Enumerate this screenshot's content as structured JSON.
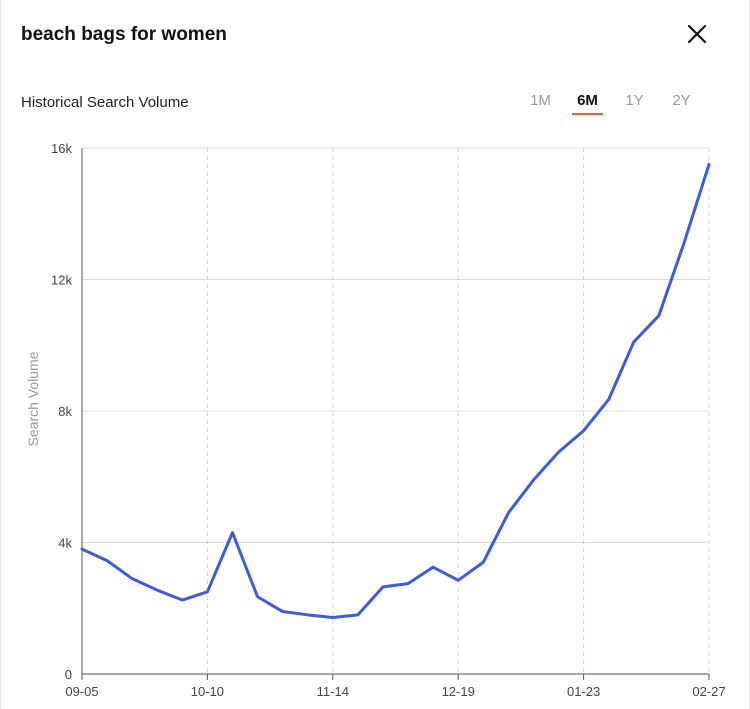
{
  "panel": {
    "title": "beach bags for women",
    "subtitle": "Historical Search Volume",
    "ranges": [
      {
        "label": "1M",
        "active": false
      },
      {
        "label": "6M",
        "active": true
      },
      {
        "label": "1Y",
        "active": false
      },
      {
        "label": "2Y",
        "active": false
      }
    ],
    "accent_color": "#e8632a",
    "close_icon": "close-icon"
  },
  "chart_data": {
    "type": "line",
    "title": "",
    "xlabel": "",
    "ylabel": "Search Volume",
    "ylim": [
      0,
      16000
    ],
    "y_ticks": [
      {
        "value": 0,
        "label": "0"
      },
      {
        "value": 4000,
        "label": "4k"
      },
      {
        "value": 8000,
        "label": "8k"
      },
      {
        "value": 12000,
        "label": "12k"
      },
      {
        "value": 16000,
        "label": "16k"
      }
    ],
    "x_ticks": [
      {
        "index": 0,
        "label": "09-05"
      },
      {
        "index": 5,
        "label": "10-10"
      },
      {
        "index": 10,
        "label": "11-14"
      },
      {
        "index": 15,
        "label": "12-19"
      },
      {
        "index": 20,
        "label": "01-23"
      },
      {
        "index": 25,
        "label": "02-27"
      }
    ],
    "grid": true,
    "line_color": "#3f5bd9",
    "series": [
      {
        "values": [
          3800,
          3450,
          2900,
          2550,
          2250,
          2500,
          4300,
          2350,
          1900,
          1800,
          1720,
          1800,
          2650,
          2750,
          3250,
          2850,
          3400,
          4900,
          5900,
          6750,
          7400,
          8350,
          10100,
          10900,
          13100,
          15500
        ]
      }
    ]
  }
}
